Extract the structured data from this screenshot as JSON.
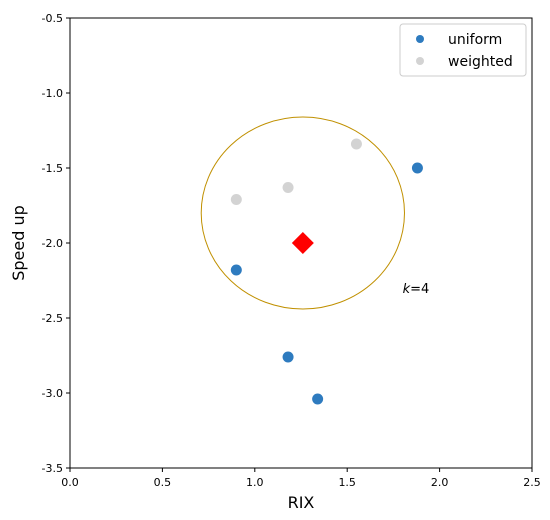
{
  "chart_data": {
    "type": "scatter",
    "xlabel": "RIX",
    "ylabel": "Speed up",
    "xlim": [
      0.0,
      2.5
    ],
    "ylim": [
      -3.5,
      -0.5
    ],
    "xticks": [
      "0.0",
      "0.5",
      "1.0",
      "1.5",
      "2.0",
      "2.5"
    ],
    "xtick_values": [
      0.0,
      0.5,
      1.0,
      1.5,
      2.0,
      2.5
    ],
    "yticks": [
      "-0.5",
      "-1.0",
      "-1.5",
      "-2.0",
      "-2.5",
      "-3.0",
      "-3.5"
    ],
    "ytick_values": [
      -0.5,
      -1.0,
      -1.5,
      -2.0,
      -2.5,
      -3.0,
      -3.5
    ],
    "grid": false,
    "legend_position": "top-right",
    "series": [
      {
        "name": "uniform",
        "color": "#2e7bbf",
        "points": [
          {
            "x": 1.88,
            "y": -1.5
          },
          {
            "x": 0.9,
            "y": -2.18
          },
          {
            "x": 1.18,
            "y": -2.76
          },
          {
            "x": 1.34,
            "y": -3.04
          }
        ]
      },
      {
        "name": "weighted",
        "color": "#d3d3d3",
        "points": [
          {
            "x": 1.55,
            "y": -1.34
          },
          {
            "x": 1.18,
            "y": -1.63
          },
          {
            "x": 0.9,
            "y": -1.71
          }
        ]
      }
    ],
    "query_point": {
      "x": 1.26,
      "y": -2.0,
      "color": "#ff0000",
      "marker": "diamond"
    },
    "circle": {
      "center_x": 1.26,
      "center_y": -1.8,
      "radius_x": 0.55,
      "radius_y": 0.64,
      "color": "#c09000"
    },
    "annotation": {
      "text_italic": "k",
      "text_rest": "=4",
      "x": 1.8,
      "y": -2.3
    }
  }
}
